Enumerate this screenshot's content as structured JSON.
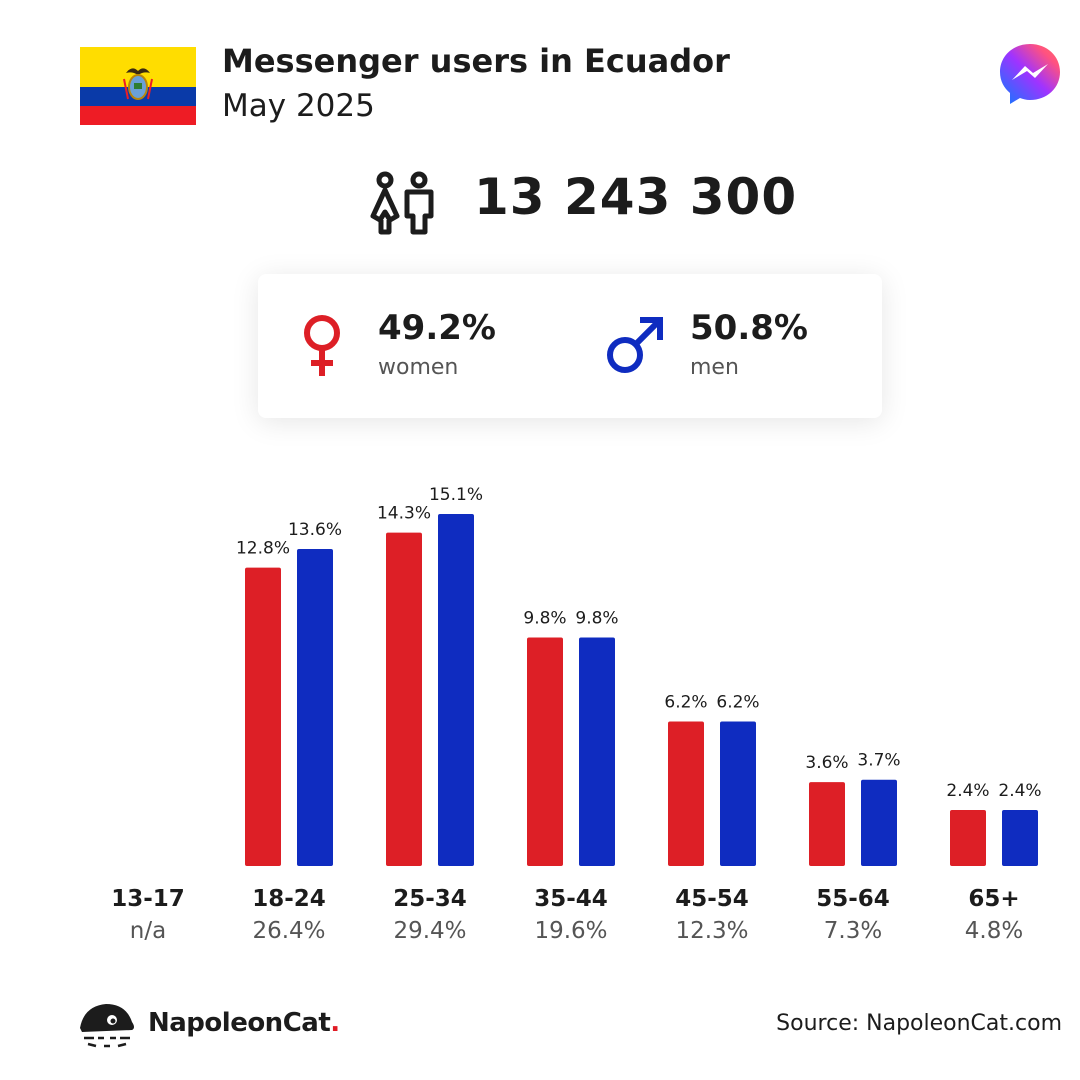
{
  "header": {
    "title": "Messenger users in Ecuador",
    "subtitle": "May 2025"
  },
  "summary": {
    "total_users": "13 243 300"
  },
  "gender": {
    "women_pct": "49.2%",
    "women_label": "women",
    "men_pct": "50.8%",
    "men_label": "men"
  },
  "colors": {
    "women": "#dd1f26",
    "men": "#0f2cc0",
    "flag_yellow": "#ffdd00",
    "flag_blue": "#0a3aa8",
    "flag_red": "#ee1c25"
  },
  "footer": {
    "brand": "NapoleonCat",
    "brand_dot": ".",
    "source": "Source: NapoleonCat.com"
  },
  "chart_data": {
    "type": "bar",
    "categories": [
      "13-17",
      "18-24",
      "25-34",
      "35-44",
      "45-54",
      "55-64",
      "65+"
    ],
    "category_totals": [
      "n/a",
      "26.4%",
      "29.4%",
      "19.6%",
      "12.3%",
      "7.3%",
      "4.8%"
    ],
    "series": [
      {
        "name": "women",
        "values": [
          null,
          12.8,
          14.3,
          9.8,
          6.2,
          3.6,
          2.4
        ],
        "labels": [
          "",
          "12.8%",
          "14.3%",
          "9.8%",
          "6.2%",
          "3.6%",
          "2.4%"
        ]
      },
      {
        "name": "men",
        "values": [
          null,
          13.6,
          15.1,
          9.8,
          6.2,
          3.7,
          2.4
        ],
        "labels": [
          "",
          "13.6%",
          "15.1%",
          "9.8%",
          "6.2%",
          "3.7%",
          "2.4%"
        ]
      }
    ],
    "ylim": [
      0,
      15.1
    ],
    "grid": false,
    "legend": "none"
  }
}
